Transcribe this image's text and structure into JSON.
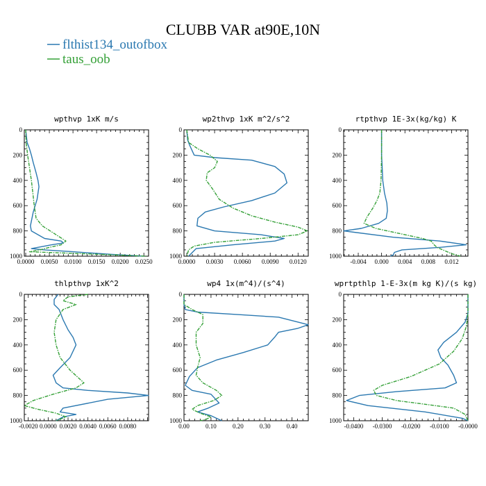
{
  "figure": {
    "title": "CLUBB VAR at90E,10N",
    "legend": [
      {
        "label": "flthist134_outofbox",
        "color": "#2a78b0"
      },
      {
        "label": "taus_oob",
        "color": "#34a037"
      }
    ]
  },
  "chart_data": [
    {
      "type": "line",
      "title": "wpthvp  1xK m/s",
      "xlim": [
        -0.0003,
        0.026
      ],
      "ylim": [
        0,
        1000
      ],
      "xticks": [
        0,
        0.005,
        0.01,
        0.015,
        0.02,
        0.025
      ],
      "xtick_labels": [
        "0.0000",
        "0.0050",
        "0.0100",
        "0.0150",
        "0.0200",
        "0.0250"
      ],
      "yticks": [
        0,
        200,
        400,
        600,
        800,
        1000
      ],
      "ytick_labels": [
        "0",
        "200",
        "400",
        "600",
        "800",
        "1000"
      ],
      "series": [
        {
          "name": "flthist134_outofbox",
          "x": [
            0.0,
            0.0003,
            0.0008,
            0.0012,
            0.0016,
            0.0022,
            0.0026,
            0.0028,
            0.0024,
            0.0016,
            0.001,
            0.0012,
            0.004,
            0.0075,
            0.008,
            0.0055,
            0.0012,
            0.004,
            0.01,
            0.018,
            0.025
          ],
          "y": [
            0,
            100,
            150,
            200,
            260,
            340,
            400,
            450,
            550,
            650,
            760,
            800,
            860,
            880,
            895,
            910,
            940,
            950,
            965,
            985,
            1000
          ]
        },
        {
          "name": "taus_oob",
          "x": [
            0.0,
            0.0001,
            0.0004,
            0.0008,
            0.0012,
            0.0015,
            0.0018,
            0.0022,
            0.0035,
            0.006,
            0.0085,
            0.0075,
            0.005,
            0.003,
            0.0008,
            0.012,
            0.02,
            0.0255
          ],
          "y": [
            0,
            100,
            200,
            300,
            400,
            500,
            600,
            700,
            760,
            820,
            880,
            910,
            930,
            950,
            965,
            980,
            992,
            1000
          ]
        }
      ]
    },
    {
      "type": "line",
      "title": "wp2thvp  1xK m^2/s^2",
      "xlim": [
        -0.0003,
        0.0131
      ],
      "ylim": [
        0,
        1000
      ],
      "xticks": [
        0,
        0.003,
        0.006,
        0.009,
        0.012
      ],
      "xtick_labels": [
        "0.0000",
        "0.0030",
        "0.0060",
        "0.0090",
        "0.0120"
      ],
      "yticks": [
        0,
        200,
        400,
        600,
        800,
        1000
      ],
      "ytick_labels": [
        "0",
        "200",
        "400",
        "600",
        "800",
        "1000"
      ],
      "series": [
        {
          "name": "flthist134_outofbox",
          "x": [
            0.0,
            0.0001,
            0.0003,
            0.0008,
            0.003,
            0.007,
            0.0095,
            0.0105,
            0.0108,
            0.0095,
            0.007,
            0.004,
            0.002,
            0.0012,
            0.0011,
            0.003,
            0.008,
            0.0105,
            0.0095,
            0.005,
            0.001,
            0.0002
          ],
          "y": [
            0,
            80,
            120,
            200,
            220,
            240,
            290,
            350,
            420,
            500,
            560,
            610,
            650,
            700,
            760,
            800,
            830,
            860,
            880,
            910,
            940,
            1000
          ]
        },
        {
          "name": "taus_oob",
          "x": [
            0.0,
            0.0002,
            0.0012,
            0.0025,
            0.0033,
            0.003,
            0.0022,
            0.0021,
            0.0028,
            0.0035,
            0.005,
            0.007,
            0.0095,
            0.012,
            0.013,
            0.012,
            0.008,
            0.003,
            0.0008,
            0.0002,
            0.0
          ],
          "y": [
            0,
            100,
            150,
            200,
            250,
            300,
            340,
            400,
            470,
            550,
            620,
            680,
            730,
            770,
            800,
            830,
            860,
            890,
            920,
            950,
            1000
          ]
        }
      ]
    },
    {
      "type": "line",
      "title": "rtpthvp  1E-3x(kg/kg) K",
      "xlim": [
        -0.0065,
        0.0148
      ],
      "ylim": [
        0,
        1000
      ],
      "xticks": [
        -0.004,
        0,
        0.004,
        0.008,
        0.012
      ],
      "xtick_labels": [
        "-0.004",
        "0.000",
        "0.004",
        "0.008",
        "0.012"
      ],
      "yticks": [
        0,
        200,
        400,
        600,
        800,
        1000
      ],
      "ytick_labels": [
        "0",
        "200",
        "400",
        "600",
        "800",
        "1000"
      ],
      "series": [
        {
          "name": "flthist134_outofbox",
          "x": [
            0.0,
            0.0,
            0.0001,
            0.0002,
            0.0005,
            0.0009,
            0.001,
            0.0008,
            -0.0005,
            -0.0035,
            -0.0065,
            0.002,
            0.01,
            0.0145,
            0.01,
            0.0035,
            0.0022,
            0.002,
            0.0015
          ],
          "y": [
            0,
            200,
            300,
            400,
            500,
            580,
            640,
            700,
            740,
            780,
            800,
            850,
            880,
            910,
            930,
            950,
            970,
            990,
            1000
          ]
        },
        {
          "name": "taus_oob",
          "x": [
            0.0,
            0.0,
            -0.0001,
            -0.0003,
            -0.0008,
            -0.0015,
            -0.0025,
            -0.003,
            -0.001,
            0.003,
            0.007,
            0.0085,
            0.009,
            0.0095,
            0.0105,
            0.012,
            0.0135
          ],
          "y": [
            0,
            200,
            400,
            500,
            560,
            620,
            690,
            740,
            780,
            820,
            860,
            880,
            910,
            930,
            950,
            980,
            1000
          ]
        }
      ]
    },
    {
      "type": "line",
      "title": "thlpthvp  1xK^2",
      "xlim": [
        -0.0024,
        0.0101
      ],
      "ylim": [
        0,
        1000
      ],
      "xticks": [
        -0.002,
        0,
        0.002,
        0.004,
        0.006,
        0.008
      ],
      "xtick_labels": [
        "-0.0020",
        "0.0000",
        "0.0020",
        "0.0040",
        "0.0060",
        "0.0080"
      ],
      "yticks": [
        0,
        200,
        400,
        600,
        800,
        1000
      ],
      "ytick_labels": [
        "0",
        "200",
        "400",
        "600",
        "800",
        "1000"
      ],
      "series": [
        {
          "name": "flthist134_outofbox",
          "x": [
            0.001,
            0.0006,
            0.0006,
            0.0011,
            0.0015,
            0.002,
            0.0025,
            0.0028,
            0.0022,
            0.0012,
            0.0005,
            0.0008,
            0.0015,
            0.004,
            0.008,
            0.0101,
            0.006,
            0.0015,
            0.0012,
            0.0028,
            0.0015,
            0.0008
          ],
          "y": [
            0,
            40,
            80,
            120,
            200,
            280,
            340,
            400,
            500,
            580,
            640,
            700,
            740,
            760,
            780,
            800,
            830,
            900,
            930,
            950,
            970,
            1000
          ]
        },
        {
          "name": "taus_oob",
          "x": [
            0.004,
            0.002,
            0.0015,
            0.0028,
            0.0015,
            0.0008,
            0.0006,
            0.0008,
            0.0012,
            0.0022,
            0.0036,
            0.0028,
            0.0005,
            -0.0015,
            -0.0024,
            -0.001,
            0.0008,
            0.0018,
            0.0008
          ],
          "y": [
            0,
            20,
            50,
            80,
            120,
            200,
            300,
            400,
            500,
            600,
            700,
            740,
            790,
            840,
            880,
            910,
            940,
            970,
            1000
          ]
        }
      ]
    },
    {
      "type": "line",
      "title": "wp4  1x(m^4)/(s^4)",
      "xlim": [
        0,
        0.46
      ],
      "ylim": [
        0,
        1000
      ],
      "xticks": [
        0,
        0.1,
        0.2,
        0.3,
        0.4
      ],
      "xtick_labels": [
        "0.00",
        "0.10",
        "0.20",
        "0.30",
        "0.40"
      ],
      "yticks": [
        0,
        200,
        400,
        600,
        800,
        1000
      ],
      "ytick_labels": [
        "0",
        "200",
        "400",
        "600",
        "800",
        "1000"
      ],
      "series": [
        {
          "name": "flthist134_outofbox",
          "x": [
            0.0,
            0.0,
            0.005,
            0.05,
            0.2,
            0.35,
            0.46,
            0.42,
            0.35,
            0.335,
            0.31,
            0.22,
            0.12,
            0.05,
            0.02,
            0.005,
            0.03,
            0.1,
            0.13,
            0.09,
            0.05,
            0.1,
            0.14
          ],
          "y": [
            0,
            80,
            120,
            140,
            160,
            180,
            240,
            270,
            300,
            340,
            400,
            460,
            520,
            580,
            650,
            720,
            760,
            790,
            860,
            900,
            930,
            960,
            1000
          ]
        },
        {
          "name": "taus_oob",
          "x": [
            0.0,
            0.0,
            0.03,
            0.07,
            0.07,
            0.045,
            0.045,
            0.06,
            0.05,
            0.045,
            0.07,
            0.12,
            0.14,
            0.11,
            0.05,
            0.03,
            0.06,
            0.1,
            0.08,
            0.06
          ],
          "y": [
            0,
            80,
            120,
            160,
            230,
            300,
            400,
            500,
            580,
            640,
            700,
            760,
            800,
            840,
            880,
            910,
            940,
            970,
            990,
            1000
          ]
        }
      ]
    },
    {
      "type": "line",
      "title": "wprtpthlp  1-E-3x(m kg K)/(s kg)",
      "xlim": [
        -0.0435,
        0.0
      ],
      "ylim": [
        0,
        1000
      ],
      "xticks": [
        -0.04,
        -0.03,
        -0.02,
        -0.01,
        0.0
      ],
      "xtick_labels": [
        "-0.0400",
        "-0.0300",
        "-0.0200",
        "-0.0100",
        "-0.0000"
      ],
      "yticks": [
        0,
        200,
        400,
        600,
        800,
        1000
      ],
      "ytick_labels": [
        "0",
        "200",
        "400",
        "600",
        "800",
        "1000"
      ],
      "series": [
        {
          "name": "flthist134_outofbox",
          "x": [
            0.0,
            0.0,
            -0.001,
            -0.004,
            -0.0085,
            -0.0105,
            -0.0095,
            -0.007,
            -0.005,
            -0.004,
            -0.008,
            -0.025,
            -0.038,
            -0.0425,
            -0.035,
            -0.015,
            -0.002,
            0.0
          ],
          "y": [
            0,
            150,
            220,
            300,
            380,
            440,
            500,
            560,
            640,
            700,
            740,
            770,
            800,
            840,
            880,
            930,
            980,
            1000
          ]
        },
        {
          "name": "taus_oob",
          "x": [
            0.0,
            0.0,
            -0.0005,
            -0.002,
            -0.005,
            -0.01,
            -0.02,
            -0.03,
            -0.033,
            -0.032,
            -0.025,
            -0.015,
            -0.005,
            -0.001,
            0.0
          ],
          "y": [
            0,
            150,
            250,
            350,
            450,
            550,
            650,
            720,
            760,
            800,
            840,
            870,
            900,
            950,
            1000
          ]
        }
      ]
    }
  ]
}
